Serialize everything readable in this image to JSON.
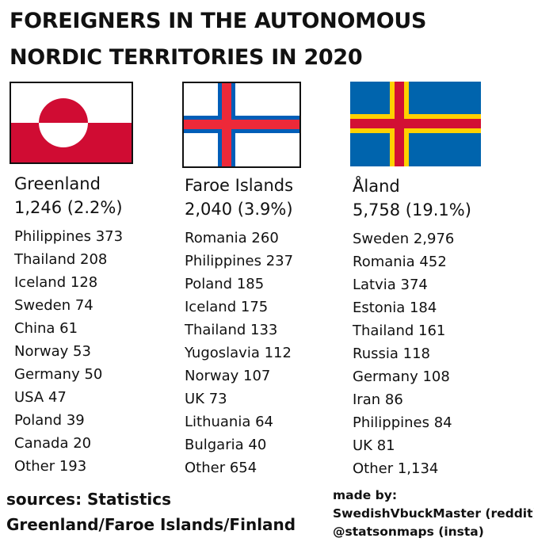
{
  "title_lines": [
    "FOREIGNERS IN THE AUTONOMOUS",
    "NORDIC TERRITORIES IN 2020"
  ],
  "colors": {
    "greenland_red": "#d00c33",
    "faroe_red": "#ed2939",
    "faroe_blue": "#005eb8",
    "aland_blue": "#0064ad",
    "aland_yellow": "#fed100",
    "aland_red": "#d21034"
  },
  "territories": [
    {
      "name": "Greenland",
      "total": "1,246 (2.2%)",
      "flag_icon": "greenland-flag-icon",
      "items": [
        "Philippines 373",
        "Thailand 208",
        "Iceland 128",
        "Sweden 74",
        "China 61",
        "Norway 53",
        "Germany 50",
        "USA 47",
        "Poland 39",
        "Canada 20",
        "Other 193"
      ]
    },
    {
      "name": "Faroe Islands",
      "total": "2,040 (3.9%)",
      "flag_icon": "faroe-islands-flag-icon",
      "items": [
        "Romania 260",
        "Philippines 237",
        "Poland 185",
        "Iceland 175",
        "Thailand 133",
        "Yugoslavia 112",
        "Norway 107",
        "UK 73",
        "Lithuania 64",
        "Bulgaria 40",
        "Other 654"
      ]
    },
    {
      "name": "Åland",
      "total": "5,758 (19.1%)",
      "flag_icon": "aland-flag-icon",
      "items": [
        "Sweden 2,976",
        "Romania 452",
        "Latvia 374",
        "Estonia 184",
        "Thailand 161",
        "Russia 118",
        "Germany 108",
        "Iran 86",
        "Philippines 84",
        "UK 81",
        "Other 1,134"
      ]
    }
  ],
  "sources_lines": [
    "sources: Statistics",
    "Greenland/Faroe Islands/Finland"
  ],
  "madeby_lines": [
    "made by:",
    "SwedishVbuckMaster (reddit)",
    "@statsonmaps (insta)"
  ]
}
